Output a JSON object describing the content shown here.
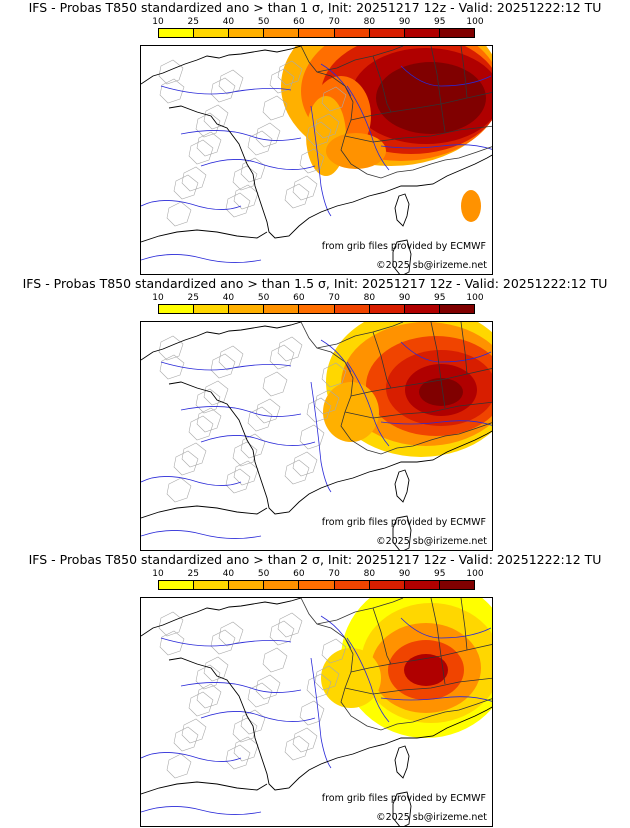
{
  "colorbar": {
    "labels": [
      "10",
      "25",
      "40",
      "50",
      "60",
      "70",
      "80",
      "90",
      "95",
      "100"
    ],
    "colors": [
      "#ffff00",
      "#ffd700",
      "#ffb000",
      "#ff9200",
      "#ff6e00",
      "#f04400",
      "#d81e00",
      "#b00000",
      "#800000"
    ]
  },
  "panels": [
    {
      "title": "IFS - Probas T850  standardized ano > than 1 σ, Init: 20251217 12z - Valid: 20251222:12 TU",
      "credit_source": "from grib files provided by ECMWF",
      "credit_copyright": "©2025 sb@irizeme.net"
    },
    {
      "title": "IFS - Probas T850  standardized ano > than 1.5 σ, Init: 20251217 12z - Valid: 20251222:12 TU",
      "credit_source": "from grib files provided by ECMWF",
      "credit_copyright": "©2025 sb@irizeme.net"
    },
    {
      "title": "IFS - Probas T850  standardized ano > than 2 σ, Init: 20251217 12z - Valid: 20251222:12 TU",
      "credit_source": "from grib files provided by ECMWF",
      "credit_copyright": "©2025 sb@irizeme.net"
    }
  ]
}
